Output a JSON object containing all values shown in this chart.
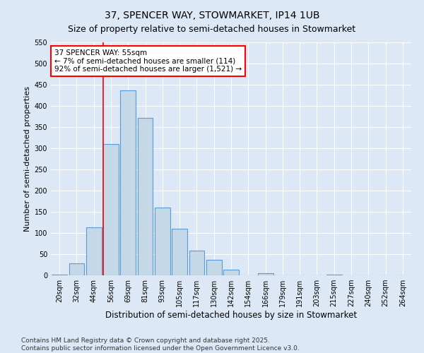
{
  "title": "37, SPENCER WAY, STOWMARKET, IP14 1UB",
  "subtitle": "Size of property relative to semi-detached houses in Stowmarket",
  "xlabel": "Distribution of semi-detached houses by size in Stowmarket",
  "ylabel": "Number of semi-detached properties",
  "categories": [
    "20sqm",
    "32sqm",
    "44sqm",
    "56sqm",
    "69sqm",
    "81sqm",
    "93sqm",
    "105sqm",
    "117sqm",
    "130sqm",
    "142sqm",
    "154sqm",
    "166sqm",
    "179sqm",
    "191sqm",
    "203sqm",
    "215sqm",
    "227sqm",
    "240sqm",
    "252sqm",
    "264sqm"
  ],
  "values": [
    2,
    28,
    114,
    310,
    437,
    372,
    160,
    110,
    58,
    37,
    13,
    0,
    5,
    0,
    0,
    0,
    2,
    0,
    0,
    0,
    0
  ],
  "bar_color": "#c5d8e8",
  "bar_edge_color": "#5b9bd5",
  "vline_x_index": 3,
  "vline_color": "red",
  "annotation_text": "37 SPENCER WAY: 55sqm\n← 7% of semi-detached houses are smaller (114)\n92% of semi-detached houses are larger (1,521) →",
  "annotation_box_color": "white",
  "annotation_box_edge_color": "red",
  "ylim": [
    0,
    550
  ],
  "yticks": [
    0,
    50,
    100,
    150,
    200,
    250,
    300,
    350,
    400,
    450,
    500,
    550
  ],
  "title_fontsize": 10,
  "xlabel_fontsize": 8.5,
  "ylabel_fontsize": 8,
  "tick_fontsize": 7,
  "annotation_fontsize": 7.5,
  "footer_text": "Contains HM Land Registry data © Crown copyright and database right 2025.\nContains public sector information licensed under the Open Government Licence v3.0.",
  "footer_fontsize": 6.5,
  "background_color": "#dce8f5",
  "plot_background_color": "#dce8f5"
}
